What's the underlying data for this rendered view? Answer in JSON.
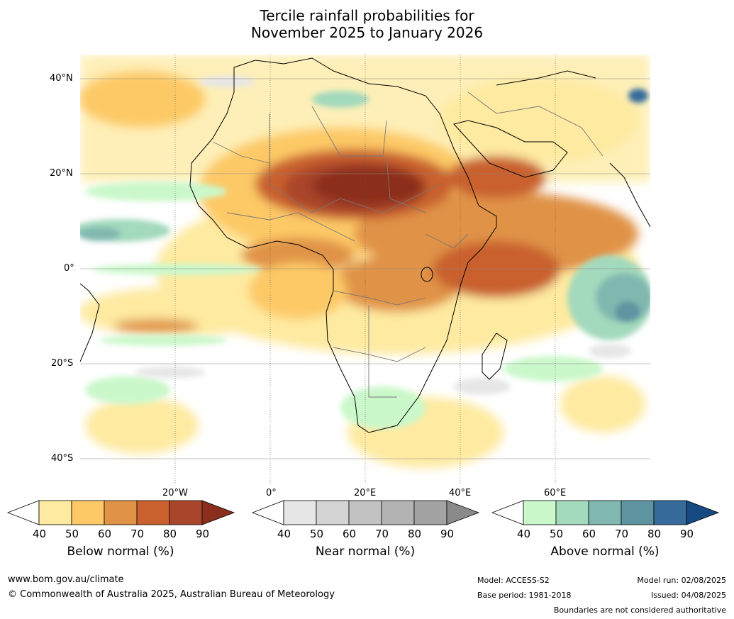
{
  "title_line1": "Tercile rainfall probabilities for",
  "title_line2": "November 2025 to January 2026",
  "map": {
    "lat_labels": [
      "40°N",
      "20°N",
      "0°",
      "20°S",
      "40°S"
    ],
    "lon_labels": [
      "20°W",
      "0°",
      "20°E",
      "40°E",
      "60°E"
    ]
  },
  "legend": {
    "below": {
      "label": "Below normal (%)",
      "ticks": [
        "40",
        "50",
        "60",
        "70",
        "80",
        "90"
      ],
      "colors": [
        "#ffffff",
        "#feeaa0",
        "#fdc966",
        "#e09347",
        "#c9602e",
        "#a9452a",
        "#8c2e1e"
      ]
    },
    "near": {
      "label": "Near normal (%)",
      "ticks": [
        "40",
        "50",
        "60",
        "70",
        "80",
        "90"
      ],
      "colors": [
        "#ffffff",
        "#e6e6e6",
        "#d4d4d4",
        "#c2c2c2",
        "#b3b3b3",
        "#a3a3a3",
        "#8a8a8a"
      ]
    },
    "above": {
      "label": "Above normal (%)",
      "ticks": [
        "40",
        "50",
        "60",
        "70",
        "80",
        "90"
      ],
      "colors": [
        "#ffffff",
        "#cbf8cb",
        "#a3d9bc",
        "#80b8b0",
        "#5e94a0",
        "#366b9b",
        "#184a82"
      ]
    }
  },
  "footer": {
    "website": "www.bom.gov.au/climate",
    "copyright": "© Commonwealth of Australia 2025, Australian Bureau of Meteorology",
    "model": "Model: ACCESS-S2",
    "base_period": "Base period: 1981-2018",
    "model_run": "Model run: 02/08/2025",
    "issued": "Issued: 04/08/2025",
    "disclaimer": "Boundaries are not considered authoritative"
  }
}
